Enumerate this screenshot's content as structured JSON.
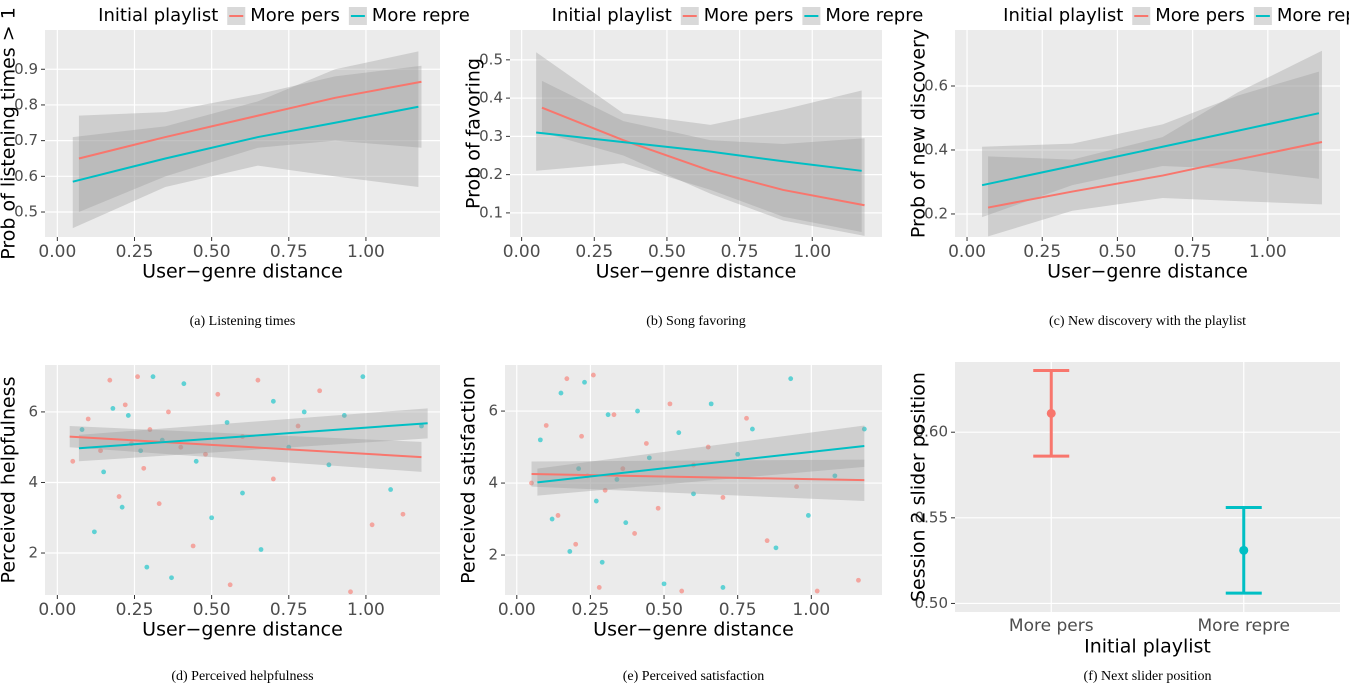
{
  "chart_data": [
    {
      "type": "line",
      "caption": "(a) Listening times",
      "legend_title": "Initial playlist",
      "x_label": "User−genre distance",
      "y_label": "Prob of listening times > 1",
      "xlim": [
        -0.04,
        1.24
      ],
      "xticks": [
        {
          "value": 0,
          "label": "0.00"
        },
        {
          "value": 0.25,
          "label": "0.25"
        },
        {
          "value": 0.5,
          "label": "0.50"
        },
        {
          "value": 0.75,
          "label": "0.75"
        },
        {
          "value": 1,
          "label": "1.00"
        }
      ],
      "ylim": [
        0.43,
        1.01
      ],
      "yticks": [
        0.5,
        0.6,
        0.7,
        0.8,
        0.9
      ],
      "grid": true,
      "series": [
        {
          "name": "More pers",
          "color": "#F8766D",
          "x": [
            0.07,
            0.35,
            0.65,
            0.9,
            1.18
          ],
          "values": [
            0.65,
            0.71,
            0.77,
            0.82,
            0.865
          ],
          "lower": [
            0.5,
            0.6,
            0.68,
            0.7,
            0.68
          ],
          "upper": [
            0.77,
            0.78,
            0.83,
            0.88,
            0.91
          ]
        },
        {
          "name": "More repre",
          "color": "#00BFC4",
          "x": [
            0.05,
            0.35,
            0.65,
            0.9,
            1.17
          ],
          "values": [
            0.585,
            0.65,
            0.71,
            0.75,
            0.795
          ],
          "lower": [
            0.455,
            0.57,
            0.63,
            0.6,
            0.57
          ],
          "upper": [
            0.71,
            0.74,
            0.81,
            0.9,
            0.95
          ]
        }
      ]
    },
    {
      "type": "line",
      "caption": "(b) Song favoring",
      "legend_title": "Initial playlist",
      "x_label": "User−genre distance",
      "y_label": "Prob of favoring",
      "xlim": [
        -0.04,
        1.24
      ],
      "xticks": [
        {
          "value": 0,
          "label": "0.00"
        },
        {
          "value": 0.25,
          "label": "0.25"
        },
        {
          "value": 0.5,
          "label": "0.50"
        },
        {
          "value": 0.75,
          "label": "0.75"
        },
        {
          "value": 1,
          "label": "1.00"
        }
      ],
      "ylim": [
        0.037,
        0.578
      ],
      "yticks": [
        0.1,
        0.2,
        0.3,
        0.4,
        0.5
      ],
      "grid": true,
      "series": [
        {
          "name": "More pers",
          "color": "#F8766D",
          "x": [
            0.07,
            0.35,
            0.65,
            0.9,
            1.18
          ],
          "values": [
            0.375,
            0.29,
            0.21,
            0.16,
            0.12
          ],
          "lower": [
            0.31,
            0.25,
            0.15,
            0.08,
            0.04
          ],
          "upper": [
            0.445,
            0.34,
            0.29,
            0.28,
            0.295
          ]
        },
        {
          "name": "More repre",
          "color": "#00BFC4",
          "x": [
            0.05,
            0.35,
            0.65,
            0.9,
            1.17
          ],
          "values": [
            0.31,
            0.285,
            0.26,
            0.235,
            0.21
          ],
          "lower": [
            0.21,
            0.23,
            0.16,
            0.09,
            0.05
          ],
          "upper": [
            0.52,
            0.36,
            0.33,
            0.37,
            0.42
          ]
        }
      ]
    },
    {
      "type": "line",
      "caption": "(c) New discovery with the playlist",
      "legend_title": "Initial playlist",
      "x_label": "User−genre distance",
      "y_label": "Prob of new discovery",
      "xlim": [
        -0.04,
        1.24
      ],
      "xticks": [
        {
          "value": 0,
          "label": "0.00"
        },
        {
          "value": 0.25,
          "label": "0.25"
        },
        {
          "value": 0.5,
          "label": "0.50"
        },
        {
          "value": 0.75,
          "label": "0.75"
        },
        {
          "value": 1,
          "label": "1.00"
        }
      ],
      "ylim": [
        0.128,
        0.775
      ],
      "yticks": [
        0.2,
        0.4,
        0.6
      ],
      "grid": true,
      "series": [
        {
          "name": "More pers",
          "color": "#F8766D",
          "x": [
            0.07,
            0.35,
            0.65,
            0.9,
            1.18
          ],
          "values": [
            0.22,
            0.27,
            0.32,
            0.37,
            0.425
          ],
          "lower": [
            0.13,
            0.21,
            0.25,
            0.24,
            0.23
          ],
          "upper": [
            0.38,
            0.37,
            0.44,
            0.58,
            0.71
          ]
        },
        {
          "name": "More repre",
          "color": "#00BFC4",
          "x": [
            0.05,
            0.35,
            0.65,
            0.9,
            1.17
          ],
          "values": [
            0.29,
            0.35,
            0.41,
            0.46,
            0.515
          ],
          "lower": [
            0.19,
            0.29,
            0.35,
            0.34,
            0.31
          ],
          "upper": [
            0.41,
            0.42,
            0.48,
            0.57,
            0.645
          ]
        }
      ]
    },
    {
      "type": "scatter",
      "caption": "(d) Perceived helpfulness",
      "x_label": "User−genre distance",
      "y_label": "Perceived helpfulness",
      "xlim": [
        -0.04,
        1.24
      ],
      "xticks": [
        {
          "value": 0,
          "label": "0.00"
        },
        {
          "value": 0.25,
          "label": "0.25"
        },
        {
          "value": 0.5,
          "label": "0.50"
        },
        {
          "value": 0.75,
          "label": "0.75"
        },
        {
          "value": 1,
          "label": "1.00"
        }
      ],
      "ylim": [
        0.81,
        7.33
      ],
      "yticks": [
        2,
        4,
        6
      ],
      "grid": true,
      "series": [
        {
          "name": "More pers",
          "color": "#F8766D",
          "x": [
            0.04,
            1.18
          ],
          "values": [
            5.3,
            4.72
          ],
          "lower": [
            5.0,
            4.3
          ],
          "upper": [
            5.6,
            5.15
          ],
          "scatter_x": [
            0.05,
            0.1,
            0.14,
            0.17,
            0.2,
            0.22,
            0.24,
            0.26,
            0.28,
            0.3,
            0.33,
            0.36,
            0.4,
            0.44,
            0.48,
            0.52,
            0.56,
            0.6,
            0.65,
            0.7,
            0.78,
            0.85,
            0.95,
            1.02,
            1.12
          ],
          "scatter_y": [
            4.6,
            5.8,
            4.9,
            6.9,
            3.6,
            6.2,
            5.1,
            7.0,
            4.4,
            5.5,
            3.4,
            6.0,
            5.0,
            2.2,
            4.8,
            6.5,
            1.1,
            5.3,
            6.9,
            4.1,
            5.6,
            6.6,
            0.9,
            2.8,
            3.1
          ]
        },
        {
          "name": "More repre",
          "color": "#00BFC4",
          "x": [
            0.07,
            1.2
          ],
          "values": [
            4.97,
            5.68
          ],
          "lower": [
            4.6,
            5.25
          ],
          "upper": [
            5.35,
            6.1
          ],
          "scatter_x": [
            0.08,
            0.12,
            0.15,
            0.18,
            0.21,
            0.23,
            0.27,
            0.29,
            0.31,
            0.34,
            0.37,
            0.41,
            0.45,
            0.5,
            0.55,
            0.6,
            0.66,
            0.7,
            0.75,
            0.8,
            0.88,
            0.93,
            0.99,
            1.08,
            1.18
          ],
          "scatter_y": [
            5.5,
            2.6,
            4.3,
            6.1,
            3.3,
            5.9,
            4.9,
            1.6,
            7.0,
            5.2,
            1.3,
            6.8,
            4.6,
            3.0,
            5.7,
            3.7,
            2.1,
            6.3,
            5.0,
            6.0,
            4.5,
            5.9,
            7.0,
            3.8,
            5.6
          ]
        }
      ]
    },
    {
      "type": "scatter",
      "caption": "(e) Perceived satisfaction",
      "x_label": "User−genre distance",
      "y_label": "Perceived satisfaction",
      "xlim": [
        -0.04,
        1.24
      ],
      "xticks": [
        {
          "value": 0,
          "label": "0.00"
        },
        {
          "value": 0.25,
          "label": "0.25"
        },
        {
          "value": 0.5,
          "label": "0.50"
        },
        {
          "value": 0.75,
          "label": "0.75"
        },
        {
          "value": 1,
          "label": "1.00"
        }
      ],
      "ylim": [
        0.89,
        7.28
      ],
      "yticks": [
        2,
        4,
        6
      ],
      "grid": true,
      "series": [
        {
          "name": "More pers",
          "color": "#F8766D",
          "x": [
            0.05,
            1.18
          ],
          "values": [
            4.25,
            4.08
          ],
          "lower": [
            3.9,
            3.5
          ],
          "upper": [
            4.6,
            4.65
          ],
          "scatter_x": [
            0.05,
            0.1,
            0.14,
            0.17,
            0.2,
            0.22,
            0.24,
            0.26,
            0.28,
            0.3,
            0.33,
            0.36,
            0.4,
            0.44,
            0.48,
            0.52,
            0.56,
            0.6,
            0.65,
            0.7,
            0.78,
            0.85,
            0.95,
            1.02,
            1.16
          ],
          "scatter_y": [
            4.0,
            5.6,
            3.1,
            6.9,
            2.3,
            5.3,
            4.2,
            7.0,
            1.1,
            3.8,
            5.9,
            4.4,
            2.6,
            5.1,
            3.3,
            6.2,
            1.0,
            4.5,
            5.0,
            3.6,
            5.8,
            2.4,
            3.9,
            1.0,
            1.3
          ]
        },
        {
          "name": "More repre",
          "color": "#00BFC4",
          "x": [
            0.07,
            1.18
          ],
          "values": [
            4.02,
            5.03
          ],
          "lower": [
            3.65,
            4.45
          ],
          "upper": [
            4.4,
            5.6
          ],
          "scatter_x": [
            0.08,
            0.12,
            0.15,
            0.18,
            0.21,
            0.23,
            0.27,
            0.29,
            0.31,
            0.34,
            0.37,
            0.41,
            0.45,
            0.5,
            0.55,
            0.6,
            0.66,
            0.7,
            0.75,
            0.8,
            0.88,
            0.93,
            0.99,
            1.08,
            1.18
          ],
          "scatter_y": [
            5.2,
            3.0,
            6.5,
            2.1,
            4.4,
            6.8,
            3.5,
            1.8,
            5.9,
            4.1,
            2.9,
            6.0,
            4.7,
            1.2,
            5.4,
            3.7,
            6.2,
            1.1,
            4.8,
            5.5,
            2.2,
            6.9,
            3.1,
            4.2,
            5.5
          ]
        }
      ]
    },
    {
      "type": "errorbar",
      "caption": "(f) Next slider position",
      "x_label": "Initial playlist",
      "y_label": "Session 2 slider position",
      "categories": [
        "More pers",
        "More repre"
      ],
      "colors": [
        "#F8766D",
        "#00BFC4"
      ],
      "values": [
        0.611,
        0.531
      ],
      "lower": [
        0.586,
        0.506
      ],
      "upper": [
        0.636,
        0.556
      ],
      "ylim": [
        0.495,
        0.641
      ],
      "yticks": [
        {
          "value": 0.5,
          "label": "0.50"
        },
        {
          "value": 0.55,
          "label": "0.55"
        },
        {
          "value": 0.6,
          "label": "0.60"
        }
      ],
      "grid": true
    }
  ]
}
